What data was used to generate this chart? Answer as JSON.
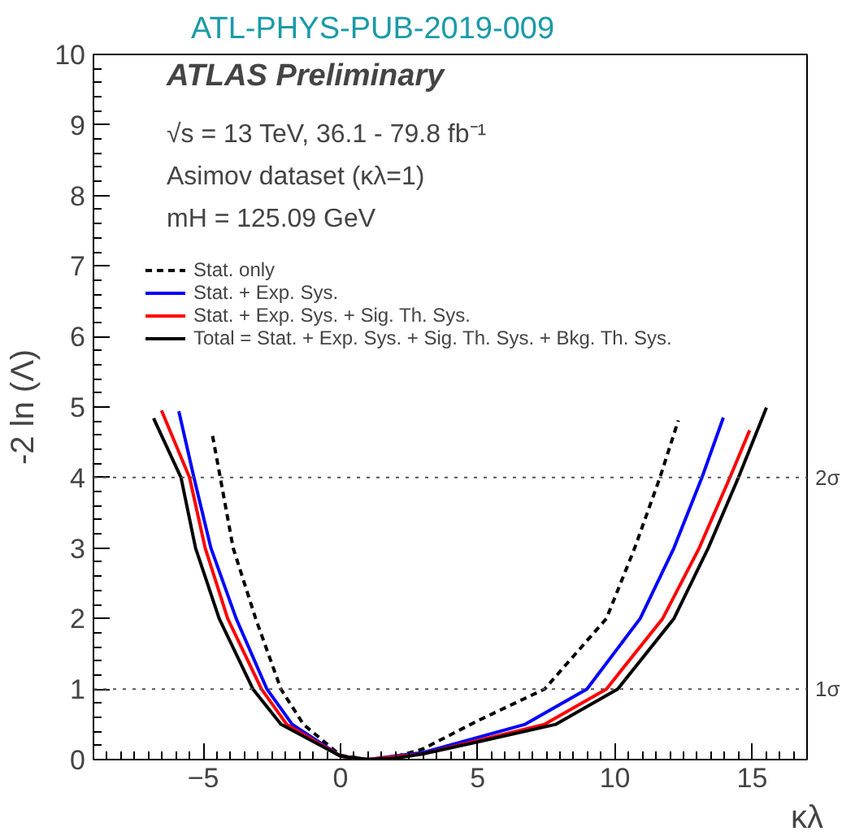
{
  "chart_data": {
    "type": "line",
    "title": "ATL-PHYS-PUB-2019-009",
    "xlabel": "κλ",
    "ylabel": "-2 ln (Λ)",
    "xlim": [
      -9,
      17
    ],
    "ylim": [
      0,
      10
    ],
    "xticks": [
      -5,
      0,
      5,
      10,
      15
    ],
    "yticks": [
      0,
      1,
      2,
      3,
      4,
      5,
      6,
      7,
      8,
      9,
      10
    ],
    "grid": false,
    "legend": "top left",
    "annotations": [
      "ATLAS Preliminary",
      "√s = 13 TeV, 36.1 - 79.8 fb⁻¹",
      "Asimov dataset (κλ=1)",
      "mH = 125.09 GeV"
    ],
    "ref_lines": [
      {
        "axis": "y",
        "value": 4,
        "label": "2σ",
        "line_style": "dotted",
        "color": "#555555"
      },
      {
        "axis": "y",
        "value": 1,
        "label": "1σ",
        "line_style": "dotted",
        "color": "#555555"
      }
    ],
    "series": [
      {
        "name": "Stat. only",
        "color": "#000000",
        "line_style": "dashed",
        "x": [
          -4.66,
          -4.38,
          -3.91,
          -3.09,
          -2.17,
          -1.35,
          0,
          1,
          2,
          3,
          5,
          7.44,
          9.69,
          10.72,
          11.64,
          12.31
        ],
        "values": [
          4.59,
          4,
          3,
          2,
          1,
          0.5,
          0.06,
          0,
          0.04,
          0.15,
          0.55,
          1,
          2,
          3,
          4,
          4.81
        ]
      },
      {
        "name": "Stat. + Exp. Sys.",
        "color": "#0000ff",
        "x": [
          -5.89,
          -5.34,
          -4.72,
          -3.8,
          -2.68,
          -1.76,
          0,
          1,
          3,
          6.73,
          8.98,
          10.92,
          12.15,
          13.17,
          13.95
        ],
        "values": [
          4.94,
          4,
          3,
          2,
          1,
          0.5,
          0.05,
          0,
          0.1,
          0.5,
          1,
          2,
          3,
          4,
          4.85
        ]
      },
      {
        "name": "Stat. + Exp. Sys. + Sig. Th. Sys.",
        "color": "#ff0000",
        "x": [
          -6.52,
          -5.5,
          -4.93,
          -4.11,
          -2.88,
          -1.96,
          0,
          1,
          3,
          7.44,
          9.69,
          11.74,
          13.07,
          14.19,
          14.91
        ],
        "values": [
          4.95,
          4,
          3,
          2,
          1,
          0.5,
          0.05,
          0,
          0.08,
          0.5,
          1,
          2,
          3,
          4,
          4.67
        ]
      },
      {
        "name": "Total = Stat. + Exp. Sys. + Sig. Th. Sys. + Bkg. Th. Sys.",
        "color": "#000000",
        "x": [
          -6.81,
          -5.81,
          -5.28,
          -4.42,
          -3.19,
          -2.17,
          0,
          1,
          2,
          3,
          5,
          7.85,
          10.1,
          12.15,
          13.4,
          14.5,
          15.52
        ],
        "values": [
          4.84,
          4,
          3,
          2,
          1,
          0.5,
          0.05,
          0,
          0.02,
          0.08,
          0.25,
          0.5,
          1,
          2,
          3,
          4,
          4.99
        ]
      }
    ]
  }
}
